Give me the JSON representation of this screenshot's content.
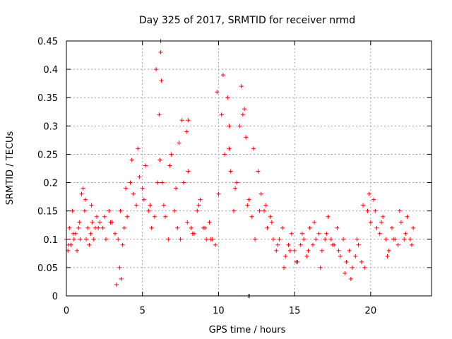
{
  "chart_data": {
    "type": "scatter",
    "title": "Day 325 of 2017, SRMTID for receiver nrmd",
    "xlabel": "GPS time / hours",
    "ylabel": "SRMTID / TECUs",
    "xlim": [
      0,
      24
    ],
    "ylim": [
      0,
      0.45
    ],
    "xticks": [
      "0",
      "5",
      "10",
      "15",
      "20"
    ],
    "xtick_values": [
      0,
      5,
      10,
      15,
      20
    ],
    "yticks": [
      "0",
      "0.05",
      "0.1",
      "0.15",
      "0.2",
      "0.25",
      "0.3",
      "0.35",
      "0.4",
      "0.45"
    ],
    "ytick_values": [
      0,
      0.05,
      0.1,
      0.15,
      0.2,
      0.25,
      0.3,
      0.35,
      0.4,
      0.45
    ],
    "grid": true,
    "marker": "+",
    "color": "#ff0000",
    "series": [
      {
        "name": "SRMTID",
        "x": [
          0.0,
          0.1,
          0.2,
          0.3,
          0.4,
          0.5,
          0.6,
          0.7,
          0.8,
          0.9,
          1.0,
          1.1,
          1.2,
          1.3,
          1.4,
          1.5,
          1.6,
          1.7,
          1.8,
          1.9,
          2.0,
          2.2,
          2.4,
          2.6,
          2.8,
          3.0,
          3.2,
          3.4,
          3.5,
          3.6,
          3.7,
          3.8,
          4.0,
          4.2,
          4.4,
          4.6,
          4.8,
          5.0,
          5.2,
          5.4,
          5.6,
          5.8,
          6.0,
          6.1,
          6.2,
          6.3,
          6.5,
          6.7,
          6.9,
          7.1,
          7.3,
          7.5,
          7.7,
          7.9,
          8.0,
          8.2,
          8.4,
          8.6,
          8.8,
          9.0,
          9.2,
          9.4,
          9.6,
          9.8,
          10.0,
          10.2,
          10.4,
          10.6,
          10.8,
          11.0,
          11.2,
          11.4,
          11.6,
          11.8,
          12.0,
          12.2,
          12.4,
          12.6,
          12.8,
          13.0,
          13.2,
          13.4,
          13.6,
          13.8,
          14.0,
          14.2,
          14.4,
          14.6,
          14.8,
          15.0,
          15.2,
          15.4,
          15.6,
          15.8,
          16.0,
          16.2,
          16.4,
          16.6,
          16.8,
          17.0,
          17.2,
          17.4,
          17.6,
          17.8,
          18.0,
          18.2,
          18.4,
          18.6,
          18.8,
          19.0,
          19.2,
          19.4,
          19.6,
          19.8,
          20.0,
          20.2,
          20.4,
          20.6,
          20.8,
          21.0,
          21.2,
          21.4,
          21.6,
          21.8,
          22.0,
          22.2,
          22.4,
          22.6,
          22.8,
          0.15,
          0.45,
          0.85,
          1.25,
          1.65,
          2.1,
          2.5,
          2.9,
          3.3,
          3.55,
          3.9,
          4.3,
          4.7,
          5.1,
          5.5,
          5.9,
          6.15,
          6.4,
          6.8,
          7.2,
          7.6,
          7.95,
          8.3,
          8.7,
          9.1,
          9.5,
          9.9,
          10.3,
          10.7,
          11.1,
          11.5,
          11.9,
          12.3,
          12.7,
          13.1,
          13.5,
          13.9,
          14.3,
          14.7,
          15.1,
          15.5,
          15.9,
          16.3,
          16.7,
          17.1,
          17.5,
          17.9,
          18.3,
          18.7,
          19.1,
          19.5,
          19.9,
          20.3,
          20.7,
          21.1,
          21.5,
          21.9,
          22.3,
          22.7,
          6.2,
          6.25,
          10.7,
          11.7,
          11.95,
          12.05,
          8.0,
          7.4
        ],
        "y": [
          0.1,
          0.08,
          0.12,
          0.09,
          0.15,
          0.1,
          0.11,
          0.08,
          0.12,
          0.1,
          0.18,
          0.19,
          0.15,
          0.1,
          0.12,
          0.09,
          0.11,
          0.13,
          0.1,
          0.12,
          0.14,
          0.13,
          0.12,
          0.1,
          0.15,
          0.13,
          0.11,
          0.1,
          0.05,
          0.03,
          0.09,
          0.12,
          0.14,
          0.2,
          0.18,
          0.16,
          0.21,
          0.19,
          0.23,
          0.15,
          0.12,
          0.14,
          0.2,
          0.32,
          0.43,
          0.2,
          0.14,
          0.1,
          0.25,
          0.15,
          0.12,
          0.1,
          0.2,
          0.29,
          0.22,
          0.12,
          0.11,
          0.15,
          0.17,
          0.12,
          0.1,
          0.13,
          0.1,
          0.09,
          0.18,
          0.32,
          0.25,
          0.35,
          0.22,
          0.15,
          0.2,
          0.3,
          0.32,
          0.28,
          0.17,
          0.14,
          0.1,
          0.22,
          0.18,
          0.15,
          0.12,
          0.14,
          0.1,
          0.08,
          0.1,
          0.12,
          0.07,
          0.09,
          0.11,
          0.08,
          0.06,
          0.09,
          0.1,
          0.07,
          0.12,
          0.09,
          0.1,
          0.11,
          0.08,
          0.1,
          0.14,
          0.1,
          0.09,
          0.12,
          0.07,
          0.1,
          0.06,
          0.08,
          0.05,
          0.07,
          0.09,
          0.06,
          0.05,
          0.15,
          0.13,
          0.17,
          0.12,
          0.11,
          0.14,
          0.1,
          0.08,
          0.12,
          0.1,
          0.09,
          0.13,
          0.1,
          0.14,
          0.1,
          0.12,
          0.09,
          0.11,
          0.13,
          0.17,
          0.16,
          0.12,
          0.14,
          0.13,
          0.02,
          0.15,
          0.19,
          0.24,
          0.26,
          0.17,
          0.16,
          0.4,
          0.24,
          0.16,
          0.23,
          0.19,
          0.31,
          0.13,
          0.11,
          0.16,
          0.12,
          0.1,
          0.36,
          0.39,
          0.26,
          0.19,
          0.37,
          0.16,
          0.26,
          0.15,
          0.16,
          0.13,
          0.09,
          0.05,
          0.08,
          0.06,
          0.11,
          0.08,
          0.13,
          0.05,
          0.11,
          0.09,
          0.08,
          0.04,
          0.03,
          0.1,
          0.16,
          0.18,
          0.15,
          0.13,
          0.07,
          0.1,
          0.15,
          0.11,
          0.09,
          0.45,
          0.38,
          0.3,
          0.33,
          0.0,
          0.0,
          0.31,
          0.27
        ]
      }
    ]
  }
}
